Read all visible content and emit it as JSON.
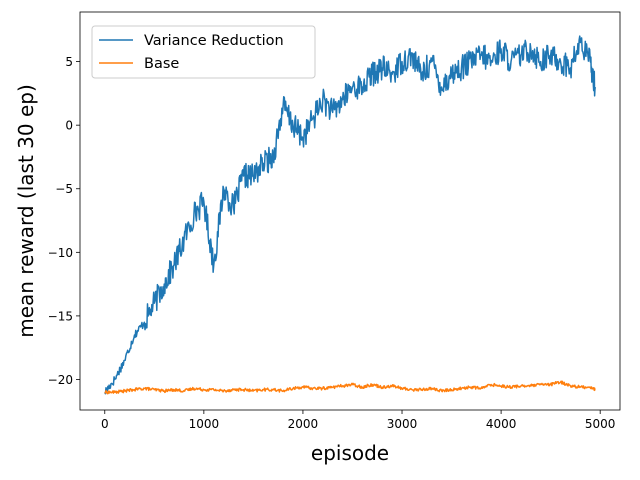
{
  "chart_data": {
    "type": "line",
    "title": "",
    "xlabel": "episode",
    "ylabel": "mean reward (last 30 ep)",
    "xlim": [
      -250,
      5200
    ],
    "ylim": [
      -22.4,
      8.9
    ],
    "x_ticks": [
      0,
      1000,
      2000,
      3000,
      4000,
      5000
    ],
    "x_tick_labels": [
      "0",
      "1000",
      "2000",
      "3000",
      "4000",
      "5000"
    ],
    "y_ticks": [
      -20,
      -15,
      -10,
      -5,
      0,
      5
    ],
    "y_tick_labels": [
      "−20",
      "−15",
      "−10",
      "−5",
      "0",
      "5"
    ],
    "grid": false,
    "legend": "upper-left",
    "series": [
      {
        "name": "Variance Reduction",
        "color": "#1f77b4",
        "x": [
          0,
          100,
          200,
          300,
          400,
          500,
          600,
          700,
          800,
          900,
          1000,
          1100,
          1200,
          1300,
          1400,
          1500,
          1600,
          1700,
          1800,
          1900,
          2000,
          2100,
          2200,
          2300,
          2400,
          2500,
          2600,
          2700,
          2800,
          2900,
          3000,
          3100,
          3200,
          3300,
          3400,
          3500,
          3600,
          3700,
          3800,
          3900,
          4000,
          4100,
          4200,
          4300,
          4400,
          4500,
          4600,
          4700,
          4800,
          4900,
          4950
        ],
        "y": [
          -21,
          -20,
          -18.5,
          -16.5,
          -15.5,
          -14,
          -12.5,
          -11,
          -9,
          -7,
          -6,
          -11,
          -5,
          -6.5,
          -4,
          -4,
          -3,
          -2.5,
          1.5,
          0,
          -1,
          0.5,
          2,
          1,
          2,
          3,
          3,
          4,
          4.5,
          4,
          5,
          5.5,
          4,
          5,
          3,
          4,
          4.5,
          5,
          5.5,
          5,
          6,
          5,
          5.5,
          6,
          5,
          5.5,
          5,
          4.5,
          6.5,
          5,
          3
        ]
      },
      {
        "name": "Base",
        "color": "#ff7f0e",
        "x": [
          0,
          100,
          200,
          300,
          400,
          500,
          600,
          700,
          800,
          900,
          1000,
          1100,
          1200,
          1300,
          1400,
          1500,
          1600,
          1700,
          1800,
          1900,
          2000,
          2100,
          2200,
          2300,
          2400,
          2500,
          2600,
          2700,
          2800,
          2900,
          3000,
          3100,
          3200,
          3300,
          3400,
          3500,
          3600,
          3700,
          3800,
          3900,
          4000,
          4100,
          4200,
          4300,
          4400,
          4500,
          4600,
          4700,
          4800,
          4900,
          4950
        ],
        "y": [
          -21,
          -21,
          -20.9,
          -20.8,
          -20.7,
          -20.8,
          -20.9,
          -20.8,
          -20.9,
          -20.7,
          -20.8,
          -20.8,
          -20.9,
          -20.8,
          -20.8,
          -20.9,
          -20.8,
          -20.8,
          -20.9,
          -20.7,
          -20.6,
          -20.7,
          -20.7,
          -20.6,
          -20.5,
          -20.4,
          -20.6,
          -20.4,
          -20.6,
          -20.5,
          -20.7,
          -20.8,
          -20.8,
          -20.7,
          -20.9,
          -20.8,
          -20.7,
          -20.6,
          -20.7,
          -20.4,
          -20.5,
          -20.6,
          -20.5,
          -20.5,
          -20.4,
          -20.4,
          -20.2,
          -20.5,
          -20.6,
          -20.6,
          -20.8
        ]
      }
    ]
  }
}
